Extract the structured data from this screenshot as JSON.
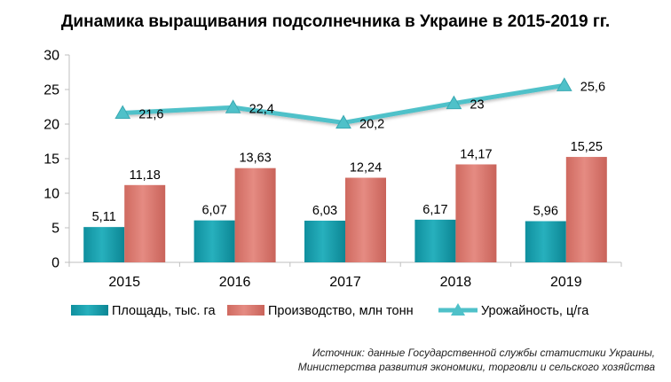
{
  "chart_data": {
    "type": "bar",
    "title": "Динамика выращивания подсолнечника в Украине в 2015-2019 гг.",
    "categories": [
      "2015",
      "2016",
      "2017",
      "2018",
      "2019"
    ],
    "ylim": [
      0,
      30
    ],
    "yticks": [
      "0",
      "5",
      "10",
      "15",
      "20",
      "25",
      "30"
    ],
    "grid": false,
    "legend_position": "bottom",
    "series": [
      {
        "name": "Площадь, тыс. га",
        "kind": "bar",
        "color": "#1a9aa8",
        "values": [
          5.11,
          6.07,
          6.03,
          6.17,
          5.96
        ],
        "labels": [
          "5,11",
          "6,07",
          "6,03",
          "6,17",
          "5,96"
        ]
      },
      {
        "name": "Производство, млн  тонн",
        "kind": "bar",
        "color": "#d9766c",
        "values": [
          11.18,
          13.63,
          12.24,
          14.17,
          15.25
        ],
        "labels": [
          "11,18",
          "13,63",
          "12,24",
          "14,17",
          "15,25"
        ]
      },
      {
        "name": "Урожайность, ц/га",
        "kind": "line",
        "color": "#4fc1c9",
        "values": [
          21.6,
          22.4,
          20.2,
          23,
          25.6
        ],
        "labels": [
          "21,6",
          "22,4",
          "20,2",
          "23",
          "25,6"
        ]
      }
    ]
  },
  "source": {
    "line1": "Источник: данные Государственной службы статистики Украины,",
    "line2": "Министерства развития экономики, торговли и сельского хозяйства"
  }
}
